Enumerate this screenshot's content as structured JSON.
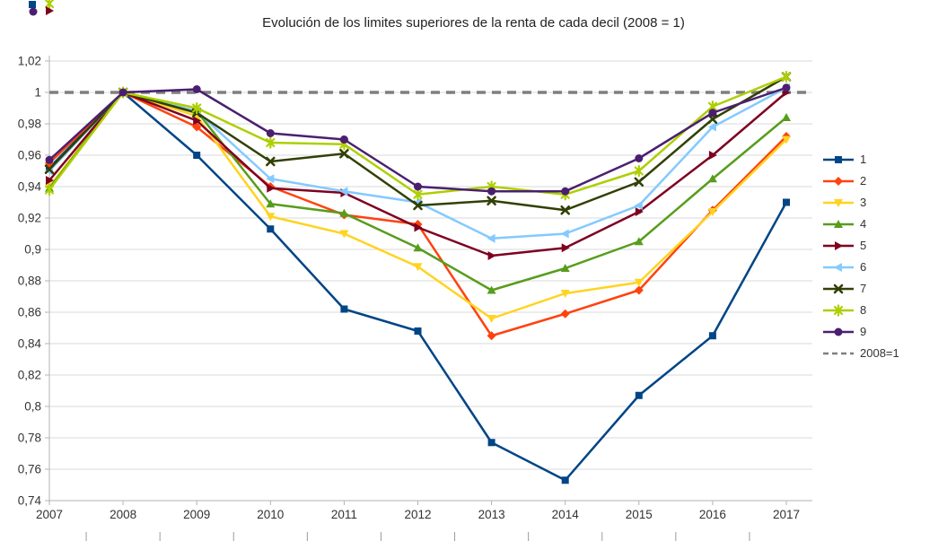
{
  "title": "Evolución de los limites superiores de la renta de cada decil (2008 = 1)",
  "chart_data": {
    "type": "line",
    "title": "Evolución de los limites superiores de la renta de cada decil (2008 = 1)",
    "xlabel": "",
    "ylabel": "",
    "grid": true,
    "legend_position": "right",
    "ylim": [
      0.74,
      1.02
    ],
    "ytick_step": 0.02,
    "x_labels": [
      "2007",
      "2008",
      "2009",
      "2010",
      "2011",
      "2012",
      "2013",
      "2014",
      "2015",
      "2016",
      "2017"
    ],
    "y_tick_labels": [
      "1,02",
      "1",
      "0,98",
      "0,96",
      "0,94",
      "0,92",
      "0,9",
      "0,88",
      "0,86",
      "0,84",
      "0,82",
      "0,8",
      "0,78",
      "0,76",
      "0,74"
    ],
    "reference_line": {
      "label": "2008=1",
      "value": 1,
      "color": "#7f7f7f",
      "style": "dashed"
    },
    "series": [
      {
        "name": "1",
        "color": "#004586",
        "marker": "square",
        "values": [
          0.952,
          1.0,
          0.96,
          0.913,
          0.862,
          0.848,
          0.777,
          0.753,
          0.807,
          0.845,
          0.93
        ]
      },
      {
        "name": "2",
        "color": "#ff420e",
        "marker": "diamond",
        "values": [
          0.955,
          1.0,
          0.978,
          0.94,
          0.922,
          0.916,
          0.845,
          0.859,
          0.874,
          0.925,
          0.972
        ]
      },
      {
        "name": "3",
        "color": "#ffd320",
        "marker": "triangle-down",
        "values": [
          0.94,
          1.0,
          0.985,
          0.921,
          0.91,
          0.889,
          0.856,
          0.872,
          0.879,
          0.924,
          0.97
        ]
      },
      {
        "name": "4",
        "color": "#579d1c",
        "marker": "triangle-up",
        "values": [
          0.939,
          1.0,
          0.988,
          0.929,
          0.923,
          0.901,
          0.874,
          0.888,
          0.905,
          0.945,
          0.984
        ]
      },
      {
        "name": "5",
        "color": "#7e0021",
        "marker": "triangle-right",
        "values": [
          0.944,
          1.0,
          0.982,
          0.939,
          0.936,
          0.914,
          0.896,
          0.901,
          0.924,
          0.96,
          1.0
        ]
      },
      {
        "name": "6",
        "color": "#83caff",
        "marker": "triangle-left",
        "values": [
          0.95,
          1.0,
          0.988,
          0.945,
          0.937,
          0.93,
          0.907,
          0.91,
          0.928,
          0.978,
          1.003
        ]
      },
      {
        "name": "7",
        "color": "#314004",
        "marker": "x",
        "values": [
          0.951,
          1.0,
          0.987,
          0.956,
          0.961,
          0.928,
          0.931,
          0.925,
          0.943,
          0.983,
          1.01
        ]
      },
      {
        "name": "8",
        "color": "#aecf00",
        "marker": "star",
        "values": [
          0.938,
          1.0,
          0.99,
          0.968,
          0.967,
          0.935,
          0.94,
          0.935,
          0.95,
          0.991,
          1.01
        ]
      },
      {
        "name": "9",
        "color": "#4b1f6f",
        "marker": "circle",
        "values": [
          0.957,
          1.0,
          1.002,
          0.974,
          0.97,
          0.94,
          0.937,
          0.937,
          0.958,
          0.987,
          1.003
        ]
      }
    ]
  }
}
